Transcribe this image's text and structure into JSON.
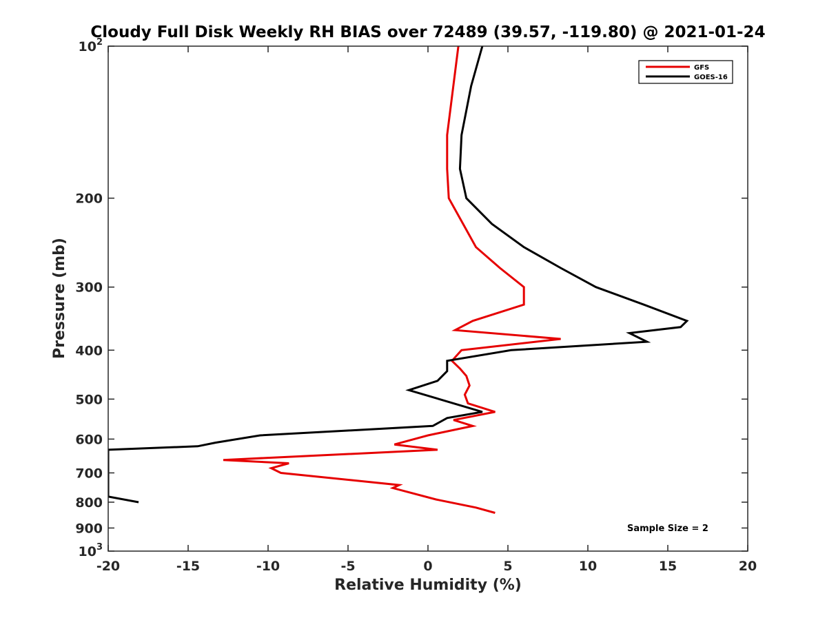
{
  "chart_data": {
    "type": "line",
    "title": "Cloudy Full Disk Weekly RH BIAS over 72489 (39.57, -119.80) @ 2021-01-24",
    "xlabel": "Relative Humidity (%)",
    "ylabel": "Pressure (mb)",
    "xlim": [
      -20,
      20
    ],
    "ylim": [
      100,
      1000
    ],
    "y_scale": "log",
    "y_reversed": true,
    "x_ticks": [
      -20,
      -15,
      -10,
      -5,
      0,
      5,
      10,
      15,
      20
    ],
    "x_tick_labels": [
      "-20",
      "-15",
      "-10",
      "-5",
      "0",
      "5",
      "10",
      "15",
      "20"
    ],
    "y_ticks": [
      100,
      200,
      300,
      400,
      500,
      600,
      700,
      800,
      900,
      1000
    ],
    "y_tick_labels": [
      {
        "base": "10",
        "sup": "2"
      },
      {
        "base": "200",
        "sup": ""
      },
      {
        "base": "300",
        "sup": ""
      },
      {
        "base": "400",
        "sup": ""
      },
      {
        "base": "500",
        "sup": ""
      },
      {
        "base": "600",
        "sup": ""
      },
      {
        "base": "700",
        "sup": ""
      },
      {
        "base": "800",
        "sup": ""
      },
      {
        "base": "900",
        "sup": ""
      },
      {
        "base": "10",
        "sup": "3"
      }
    ],
    "grid": false,
    "legend_position": "top-right",
    "annotation": "Sample Size = 2",
    "series": [
      {
        "name": "GFS",
        "color": "#e60000",
        "points": [
          [
            1.9,
            100
          ],
          [
            1.2,
            150
          ],
          [
            1.2,
            175
          ],
          [
            1.3,
            200
          ],
          [
            2.2,
            225
          ],
          [
            3.0,
            250
          ],
          [
            4.5,
            275
          ],
          [
            6.0,
            300
          ],
          [
            6.0,
            325
          ],
          [
            2.8,
            350
          ],
          [
            1.7,
            365
          ],
          [
            8.3,
            380
          ],
          [
            2.1,
            400
          ],
          [
            1.5,
            420
          ],
          [
            2.0,
            435
          ],
          [
            2.4,
            450
          ],
          [
            2.6,
            470
          ],
          [
            2.3,
            490
          ],
          [
            2.5,
            510
          ],
          [
            4.2,
            530
          ],
          [
            1.6,
            550
          ],
          [
            2.8,
            565
          ],
          [
            0.0,
            590
          ],
          [
            -2.1,
            615
          ],
          [
            0.6,
            630
          ],
          [
            -12.8,
            660
          ],
          [
            -8.7,
            670
          ],
          [
            -9.8,
            685
          ],
          [
            -9.2,
            700
          ],
          [
            -1.8,
            740
          ],
          [
            -2.2,
            750
          ],
          [
            0.5,
            790
          ],
          [
            3.0,
            820
          ],
          [
            4.2,
            840
          ]
        ]
      },
      {
        "name": "GOES-16",
        "color": "#000000",
        "points": [
          [
            3.4,
            100
          ],
          [
            2.7,
            120
          ],
          [
            2.1,
            150
          ],
          [
            2.0,
            175
          ],
          [
            2.4,
            200
          ],
          [
            4.0,
            225
          ],
          [
            6.0,
            250
          ],
          [
            8.3,
            275
          ],
          [
            10.5,
            300
          ],
          [
            13.5,
            325
          ],
          [
            16.2,
            350
          ],
          [
            15.8,
            360
          ],
          [
            12.6,
            370
          ],
          [
            13.7,
            385
          ],
          [
            5.2,
            400
          ],
          [
            1.2,
            420
          ],
          [
            1.2,
            440
          ],
          [
            0.6,
            460
          ],
          [
            -1.2,
            480
          ],
          [
            3.4,
            530
          ],
          [
            1.2,
            545
          ],
          [
            0.3,
            565
          ],
          [
            -10.5,
            590
          ],
          [
            -13.3,
            610
          ],
          [
            -14.4,
            620
          ],
          [
            -20.0,
            630
          ],
          [
            -20.0,
            780
          ],
          [
            -18.1,
            800
          ]
        ]
      }
    ]
  }
}
